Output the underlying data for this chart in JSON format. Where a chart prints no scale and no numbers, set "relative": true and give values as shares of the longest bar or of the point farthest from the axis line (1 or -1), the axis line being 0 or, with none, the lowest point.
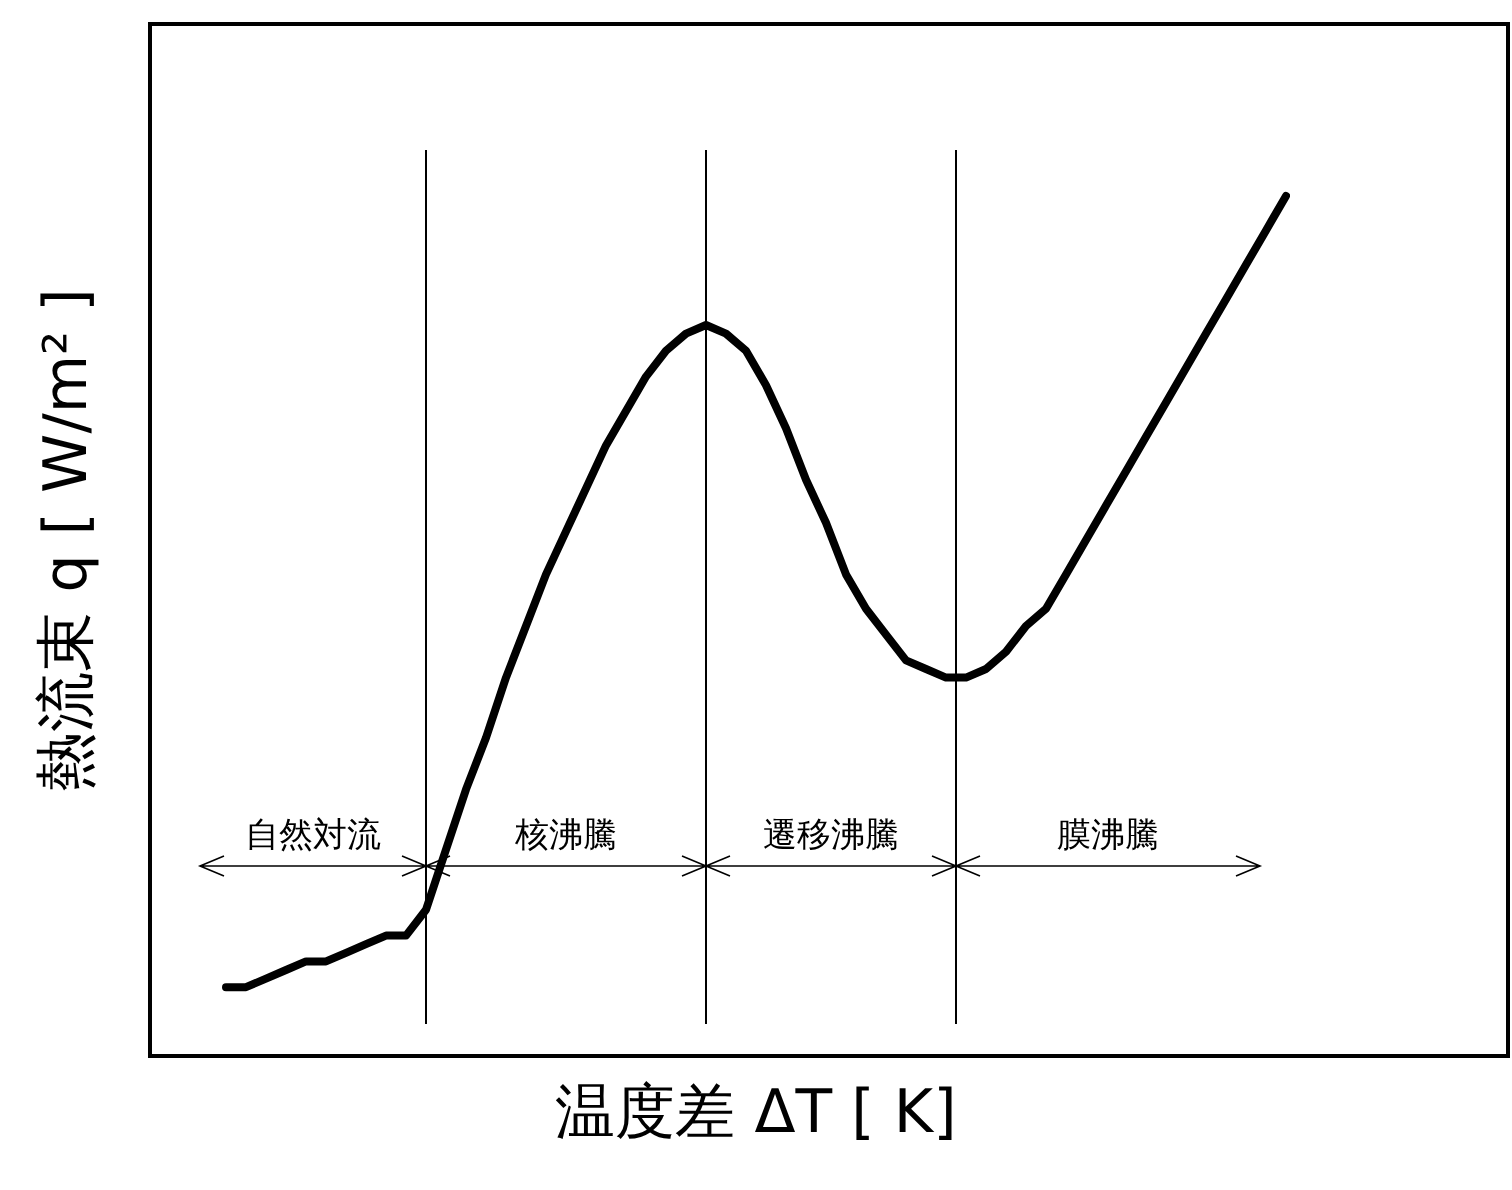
{
  "chart_data": {
    "type": "line",
    "relative": true,
    "xlabel": "温度差 ΔT [ K]",
    "ylabel": "熱流束 q [ W/m² ]",
    "categories": [
      null,
      null,
      null,
      null,
      null,
      null,
      null,
      null,
      null,
      null,
      null,
      null,
      null,
      null,
      null,
      null,
      null,
      null,
      null,
      null,
      null,
      null,
      null,
      null,
      null,
      null,
      null,
      null,
      null,
      null,
      null,
      null,
      null,
      null,
      null,
      null,
      null,
      null,
      null,
      null,
      null,
      null,
      null,
      null,
      null,
      null,
      null,
      null,
      null,
      null,
      null,
      null,
      null,
      null
    ],
    "series": [
      {
        "color": "#000000",
        "values": [
          0.08,
          0.08,
          0.09,
          0.1,
          0.11,
          0.11,
          0.12,
          0.13,
          0.14,
          0.14,
          0.17,
          0.24,
          0.31,
          0.37,
          0.44,
          0.5,
          0.56,
          0.61,
          0.66,
          0.71,
          0.75,
          0.79,
          0.82,
          0.84,
          0.85,
          0.84,
          0.82,
          0.78,
          0.73,
          0.67,
          0.62,
          0.56,
          0.52,
          0.49,
          0.46,
          0.45,
          0.44,
          0.44,
          0.45,
          0.47,
          0.5,
          0.52,
          0.56,
          0.6,
          0.64,
          0.68,
          0.72,
          0.76,
          0.8,
          0.84,
          0.88,
          0.92,
          0.96,
          1
        ]
      }
    ],
    "annotations": [
      "自然対流",
      "核沸騰",
      "遷移沸騰",
      "膜沸騰"
    ]
  }
}
